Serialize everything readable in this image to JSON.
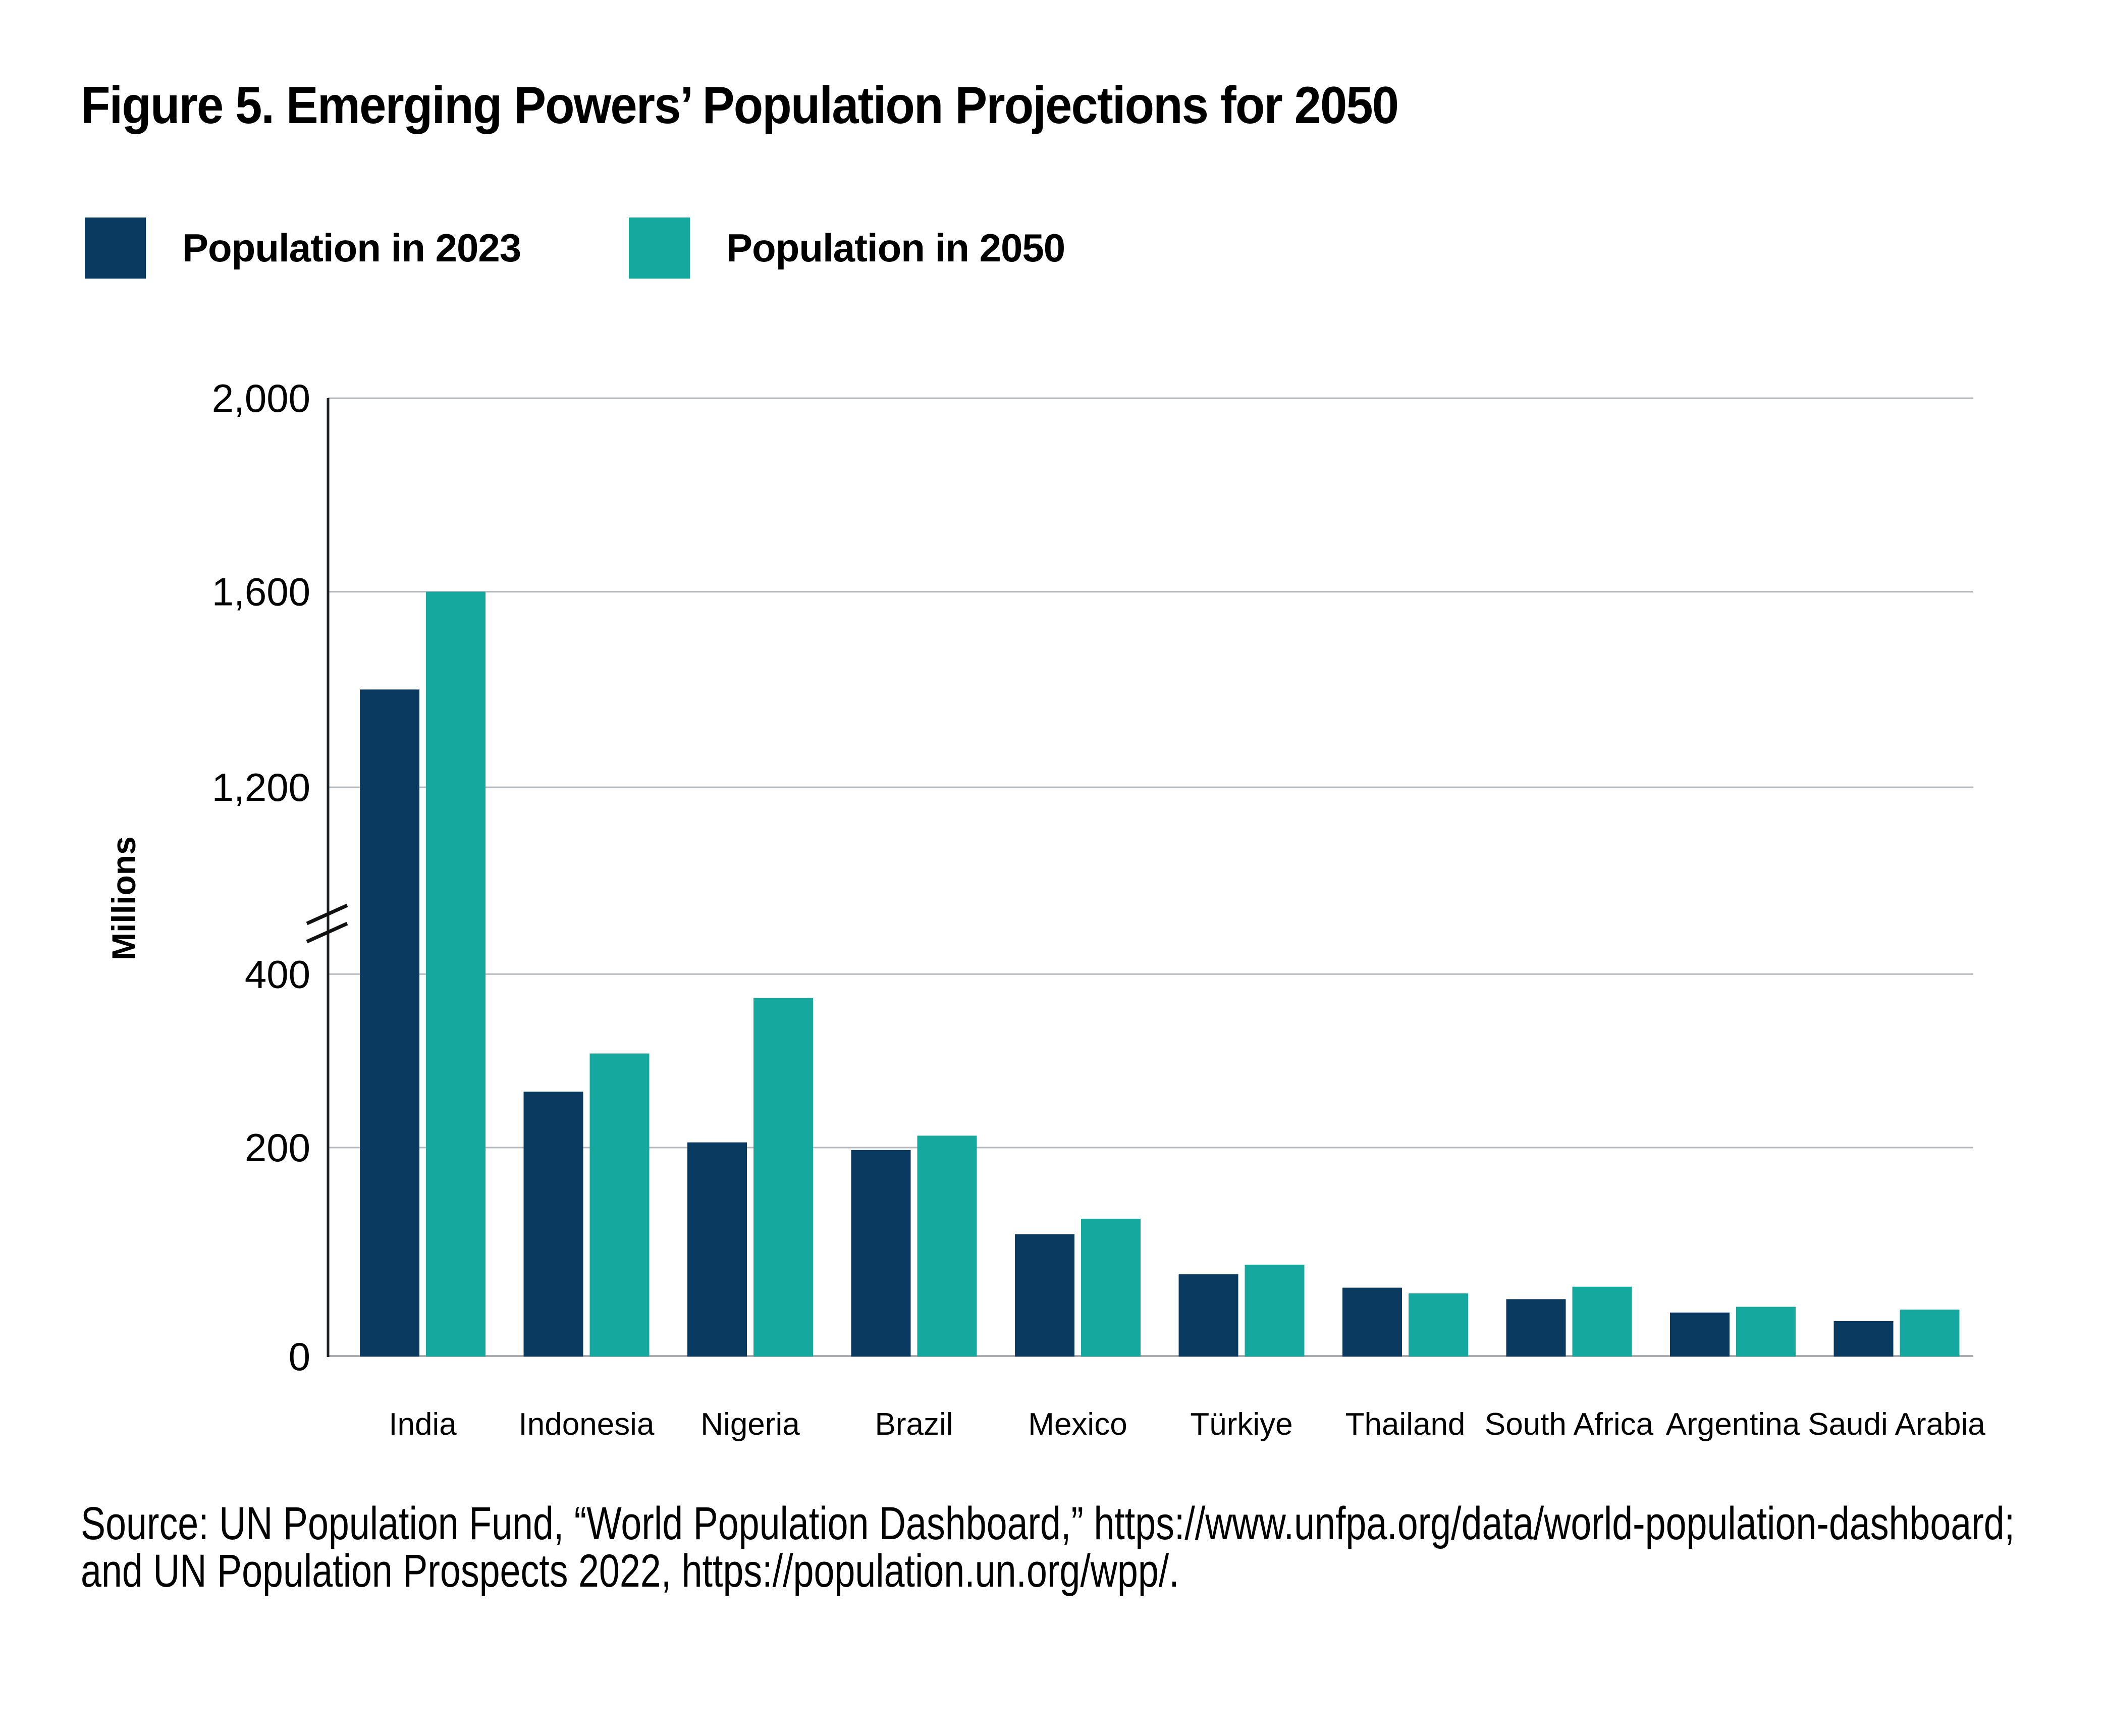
{
  "figure": {
    "title": "Figure 5. Emerging Powers’ Population Projections for 2050",
    "source_line1": "Source: UN Population Fund, “World Population Dashboard,” https://www.unfpa.org/data/world-population-dashboard;",
    "source_line2": "and UN Population Prospects 2022,  https://population.un.org/wpp/."
  },
  "legend": {
    "items": [
      {
        "label": "Population in 2023",
        "color": "#0a3a60"
      },
      {
        "label": "Population in 2050",
        "color": "#14a89e"
      }
    ]
  },
  "chart_data": {
    "type": "bar",
    "title": "Figure 5. Emerging Powers’ Population Projections for 2050",
    "xlabel": "",
    "ylabel": "Millions",
    "categories": [
      "India",
      "Indonesia",
      "Nigeria",
      "Brazil",
      "Mexico",
      "Türkiye",
      "Thailand",
      "South Africa",
      "Argentina",
      "Saudi Arabia"
    ],
    "series": [
      {
        "name": "Population in 2023",
        "color": "#0a3a60",
        "values": [
          1400,
          277,
          224,
          216,
          128,
          86,
          72,
          60,
          46,
          37
        ]
      },
      {
        "name": "Population in 2050",
        "color": "#14a89e",
        "values": [
          1600,
          317,
          375,
          231,
          144,
          96,
          66,
          73,
          52,
          49
        ]
      }
    ],
    "unit": "millions of people",
    "ylim": [
      0,
      2000
    ],
    "y_ticks": [
      0,
      200,
      400,
      1200,
      1600,
      2000
    ],
    "y_tick_labels": [
      "0",
      "200",
      "400",
      "1,200",
      "1,600",
      "2,000"
    ],
    "axis_break": true,
    "axis_break_between": [
      400,
      1200
    ],
    "grid": "horizontal",
    "legend_position": "top-left",
    "colors": {
      "gridline": "#b5b9bd",
      "baseline": "#a9adb1",
      "axis": "#1e2124",
      "break_marks": "#111111",
      "background": "#ffffff"
    }
  }
}
